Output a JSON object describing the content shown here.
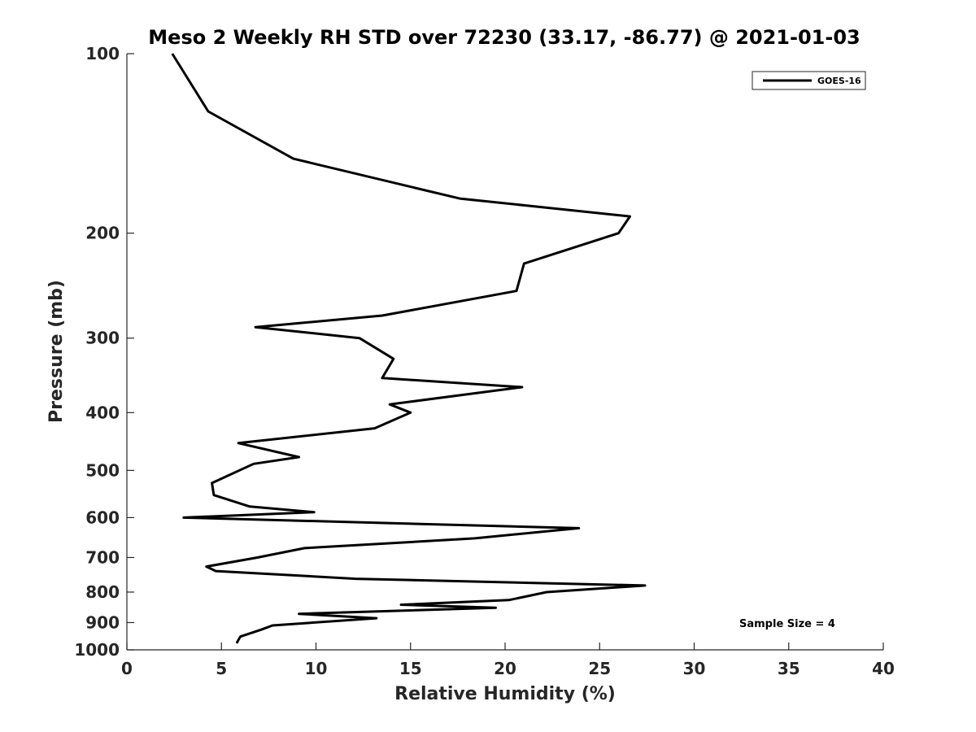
{
  "chart_data": {
    "type": "line",
    "title": "Meso 2 Weekly RH STD over 72230 (33.17, -86.77) @ 2021-01-03",
    "xlabel": "Relative Humidity (%)",
    "ylabel": "Pressure (mb)",
    "xlim": [
      0,
      40
    ],
    "ylim": [
      100,
      1000
    ],
    "y_scale": "log",
    "y_reversed": true,
    "x_ticks": [
      0,
      5,
      10,
      15,
      20,
      25,
      30,
      35,
      40
    ],
    "y_ticks": [
      100,
      200,
      300,
      400,
      500,
      600,
      700,
      800,
      900,
      1000
    ],
    "legend": {
      "position": "top-right",
      "entries": [
        "GOES-16"
      ]
    },
    "annotation": "Sample Size = 4",
    "series": [
      {
        "name": "GOES-16",
        "color": "#000000",
        "points": [
          [
            2.4,
            100
          ],
          [
            4.3,
            125
          ],
          [
            8.8,
            150
          ],
          [
            17.6,
            175
          ],
          [
            26.6,
            187.5
          ],
          [
            26.0,
            200
          ],
          [
            21.0,
            225
          ],
          [
            20.6,
            250
          ],
          [
            13.5,
            275
          ],
          [
            6.8,
            287.5
          ],
          [
            12.3,
            300
          ],
          [
            14.1,
            325
          ],
          [
            13.5,
            350
          ],
          [
            20.9,
            362.5
          ],
          [
            13.9,
            387.5
          ],
          [
            15.0,
            400
          ],
          [
            13.1,
            425
          ],
          [
            5.9,
            450
          ],
          [
            9.1,
            475
          ],
          [
            6.7,
            487.5
          ],
          [
            4.5,
            525
          ],
          [
            4.6,
            550
          ],
          [
            6.5,
            575
          ],
          [
            9.9,
            587.5
          ],
          [
            3.0,
            600
          ],
          [
            23.9,
            625
          ],
          [
            18.4,
            650
          ],
          [
            9.4,
            675
          ],
          [
            6.9,
            700
          ],
          [
            4.2,
            725
          ],
          [
            4.7,
            737.5
          ],
          [
            12.1,
            760
          ],
          [
            27.4,
            780
          ],
          [
            22.2,
            800
          ],
          [
            20.2,
            825
          ],
          [
            14.5,
            840
          ],
          [
            19.5,
            850
          ],
          [
            9.1,
            870
          ],
          [
            13.2,
            885
          ],
          [
            7.7,
            910
          ],
          [
            7.1,
            925
          ],
          [
            6.0,
            950
          ],
          [
            5.8,
            975
          ]
        ]
      }
    ]
  }
}
